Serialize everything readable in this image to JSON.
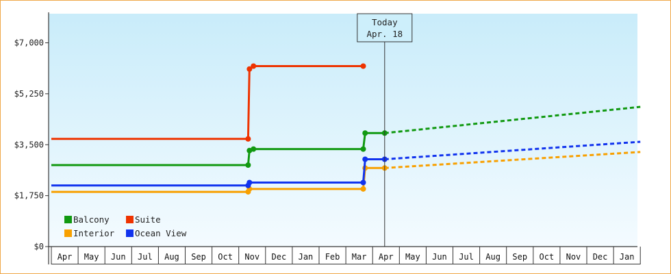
{
  "chart_data": {
    "type": "line",
    "title": "",
    "xlabel": "",
    "ylabel": "",
    "ylim": [
      0,
      8000
    ],
    "y_ticks": [
      0,
      1750,
      3500,
      5250,
      7000
    ],
    "y_tick_labels": [
      "$0",
      "$1,750",
      "$3,500",
      "$5,250",
      "$7,000"
    ],
    "x_categories": [
      "Apr",
      "May",
      "Jun",
      "Jul",
      "Aug",
      "Sep",
      "Oct",
      "Nov",
      "Dec",
      "Jan",
      "Feb",
      "Mar",
      "Apr",
      "May",
      "Jun",
      "Jul",
      "Aug",
      "Sep",
      "Oct",
      "Nov",
      "Dec",
      "Jan"
    ],
    "grid": false,
    "legend_position": "bottom-left",
    "today_marker": {
      "line1": "Today",
      "line2": "Apr. 18",
      "x": 12.45
    },
    "series": [
      {
        "name": "Balcony",
        "color": "#119911",
        "points": [
          [
            0,
            2800
          ],
          [
            7.35,
            2800
          ],
          [
            7.4,
            3300
          ],
          [
            7.55,
            3350
          ],
          [
            11.65,
            3350
          ],
          [
            11.72,
            3900
          ],
          [
            12.45,
            3900
          ]
        ],
        "forecast": [
          [
            12.45,
            3900
          ],
          [
            22,
            4800
          ]
        ]
      },
      {
        "name": "Suite",
        "color": "#ee3300",
        "points": [
          [
            0,
            3700
          ],
          [
            7.35,
            3700
          ],
          [
            7.4,
            6100
          ],
          [
            7.55,
            6200
          ],
          [
            11.65,
            6200
          ]
        ],
        "forecast": []
      },
      {
        "name": "Interior",
        "color": "#f8a000",
        "points": [
          [
            0,
            1880
          ],
          [
            7.35,
            1880
          ],
          [
            7.4,
            1980
          ],
          [
            11.65,
            1980
          ],
          [
            11.72,
            2700
          ],
          [
            12.45,
            2700
          ]
        ],
        "forecast": [
          [
            12.45,
            2700
          ],
          [
            22,
            3250
          ]
        ]
      },
      {
        "name": "Ocean View",
        "color": "#1133ee",
        "points": [
          [
            0,
            2100
          ],
          [
            7.35,
            2100
          ],
          [
            7.4,
            2200
          ],
          [
            11.65,
            2200
          ],
          [
            11.72,
            3000
          ],
          [
            12.45,
            3000
          ]
        ],
        "forecast": [
          [
            12.45,
            3000
          ],
          [
            22,
            3600
          ]
        ]
      }
    ],
    "colors": {
      "background_top": "#c9ecfa",
      "background_bottom": "#f4fbff",
      "frame_border": "#f0a848"
    }
  }
}
